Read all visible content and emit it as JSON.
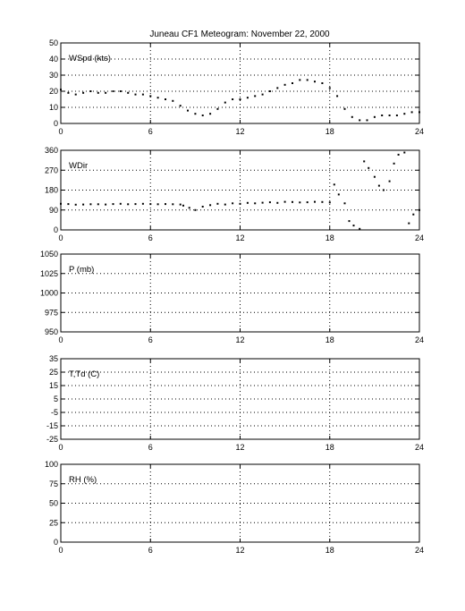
{
  "figure_title": "Juneau CF1 Meteogram:  November 22, 2000",
  "chart_data": [
    {
      "type": "scatter",
      "label": "WSpd (kts)",
      "xlim": [
        0,
        24
      ],
      "xticks": [
        0,
        6,
        12,
        18,
        24
      ],
      "ylim": [
        0,
        50
      ],
      "yticks": [
        0,
        10,
        20,
        30,
        40,
        50
      ],
      "grid": true,
      "series": [
        {
          "color": "#000000",
          "x": [
            0,
            0.5,
            1,
            1.5,
            2,
            2.5,
            3,
            3.5,
            4,
            4.5,
            5,
            5.5,
            6,
            6.5,
            7,
            7.5,
            8,
            8.5,
            9,
            9.5,
            10,
            10.5,
            11,
            11.5,
            12,
            12.5,
            13,
            13.5,
            14,
            14.5,
            15,
            15.5,
            16,
            16.5,
            17,
            17.5,
            18,
            18.5,
            19,
            19.5,
            20,
            20.5,
            21,
            21.5,
            22,
            22.5,
            23,
            23.5,
            24
          ],
          "y": [
            21,
            19,
            18,
            19,
            20,
            19,
            19,
            20,
            20,
            19,
            18,
            18,
            17,
            16,
            15,
            14,
            11,
            8,
            6,
            5,
            6,
            9,
            13,
            15,
            15,
            16,
            17,
            18,
            20,
            22,
            24,
            25,
            27,
            27,
            26,
            25,
            22,
            17,
            9,
            4,
            2,
            2,
            4,
            5,
            5,
            5,
            6,
            7,
            7
          ]
        }
      ]
    },
    {
      "type": "scatter",
      "label": "WDir",
      "xlim": [
        0,
        24
      ],
      "xticks": [
        0,
        6,
        12,
        18,
        24
      ],
      "ylim": [
        0,
        360
      ],
      "yticks": [
        0,
        90,
        180,
        270,
        360
      ],
      "grid": true,
      "series": [
        {
          "color": "#000000",
          "x": [
            0,
            0.5,
            1,
            1.5,
            2,
            2.5,
            3,
            3.5,
            4,
            4.5,
            5,
            5.5,
            6,
            6.5,
            7,
            7.5,
            8,
            8.2,
            8.6,
            9,
            9.5,
            10,
            10.5,
            11,
            11.5,
            12,
            12.5,
            13,
            13.5,
            14,
            14.5,
            15,
            15.5,
            16,
            16.5,
            17,
            17.5,
            18,
            18.3,
            18.6,
            19,
            19.3,
            19.6,
            20,
            20.3,
            20.6,
            21,
            21.3,
            21.6,
            22,
            22.3,
            22.6,
            23,
            23.3,
            23.6,
            24
          ],
          "y": [
            118,
            117,
            114,
            115,
            116,
            116,
            115,
            117,
            118,
            116,
            117,
            118,
            117,
            116,
            117,
            116,
            115,
            110,
            100,
            90,
            105,
            112,
            118,
            115,
            120,
            118,
            122,
            120,
            123,
            125,
            122,
            127,
            126,
            124,
            125,
            127,
            126,
            124,
            205,
            160,
            120,
            40,
            20,
            5,
            310,
            280,
            240,
            200,
            180,
            220,
            300,
            340,
            350,
            30,
            70,
            90
          ]
        }
      ]
    },
    {
      "type": "scatter",
      "label": "P (mb)",
      "xlim": [
        0,
        24
      ],
      "xticks": [
        0,
        6,
        12,
        18,
        24
      ],
      "ylim": [
        950,
        1050
      ],
      "yticks": [
        950,
        975,
        1000,
        1025,
        1050
      ],
      "grid": true,
      "series": []
    },
    {
      "type": "scatter",
      "label": "T,Td (C)",
      "xlim": [
        0,
        24
      ],
      "xticks": [
        0,
        6,
        12,
        18,
        24
      ],
      "ylim": [
        -25,
        35
      ],
      "yticks": [
        -25,
        -15,
        -5,
        5,
        15,
        25,
        35
      ],
      "grid": true,
      "series": []
    },
    {
      "type": "scatter",
      "label": "RH (%)",
      "xlim": [
        0,
        24
      ],
      "xticks": [
        0,
        6,
        12,
        18,
        24
      ],
      "ylim": [
        0,
        100
      ],
      "yticks": [
        0,
        25,
        50,
        75,
        100
      ],
      "grid": true,
      "series": []
    }
  ]
}
